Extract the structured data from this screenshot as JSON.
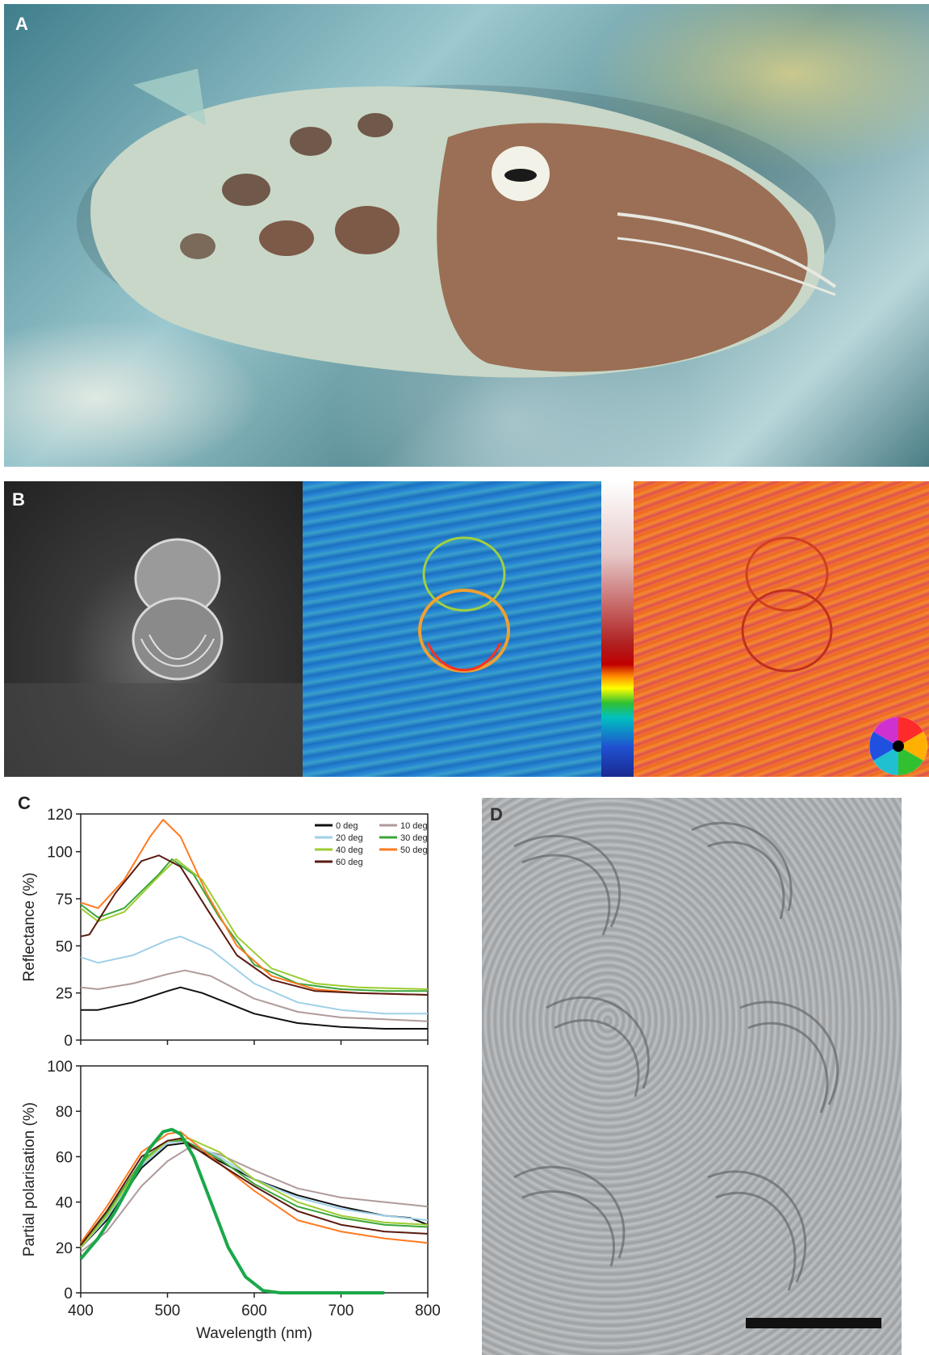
{
  "panels": {
    "a": "A",
    "b": "B",
    "c": "C",
    "d": "D"
  },
  "chart_data": [
    {
      "type": "line",
      "ylabel": "Reflectance (%)",
      "xlim": [
        400,
        800
      ],
      "ylim": [
        0,
        120
      ],
      "yticks": [
        0,
        25,
        50,
        75,
        100,
        120
      ],
      "grid": false,
      "legend_position": "top-right",
      "series": [
        {
          "name": "0 deg",
          "color": "#111111",
          "points": [
            [
              400,
              16
            ],
            [
              420,
              16
            ],
            [
              460,
              20
            ],
            [
              500,
              26
            ],
            [
              515,
              28
            ],
            [
              540,
              25
            ],
            [
              600,
              14
            ],
            [
              650,
              9
            ],
            [
              700,
              7
            ],
            [
              750,
              6
            ],
            [
              800,
              6
            ]
          ]
        },
        {
          "name": "10 deg",
          "color": "#b09a9a",
          "points": [
            [
              400,
              28
            ],
            [
              420,
              27
            ],
            [
              460,
              30
            ],
            [
              500,
              35
            ],
            [
              520,
              37
            ],
            [
              550,
              34
            ],
            [
              600,
              22
            ],
            [
              650,
              15
            ],
            [
              700,
              12
            ],
            [
              750,
              11
            ],
            [
              800,
              10
            ]
          ]
        },
        {
          "name": "20 deg",
          "color": "#9fd0e8",
          "points": [
            [
              400,
              44
            ],
            [
              420,
              41
            ],
            [
              460,
              45
            ],
            [
              500,
              53
            ],
            [
              515,
              55
            ],
            [
              550,
              48
            ],
            [
              600,
              30
            ],
            [
              650,
              20
            ],
            [
              700,
              16
            ],
            [
              750,
              14
            ],
            [
              800,
              14
            ]
          ]
        },
        {
          "name": "30 deg",
          "color": "#3aa63a",
          "points": [
            [
              400,
              72
            ],
            [
              420,
              65
            ],
            [
              450,
              70
            ],
            [
              490,
              88
            ],
            [
              505,
              96
            ],
            [
              530,
              88
            ],
            [
              560,
              65
            ],
            [
              600,
              40
            ],
            [
              650,
              30
            ],
            [
              700,
              27
            ],
            [
              750,
              26
            ],
            [
              800,
              26
            ]
          ]
        },
        {
          "name": "40 deg",
          "color": "#9ccc30",
          "points": [
            [
              400,
              70
            ],
            [
              420,
              63
            ],
            [
              450,
              68
            ],
            [
              490,
              87
            ],
            [
              510,
              96
            ],
            [
              540,
              85
            ],
            [
              580,
              55
            ],
            [
              620,
              38
            ],
            [
              670,
              30
            ],
            [
              720,
              28
            ],
            [
              800,
              27
            ]
          ]
        },
        {
          "name": "50 deg",
          "color": "#ff7a20",
          "points": [
            [
              400,
              73
            ],
            [
              420,
              70
            ],
            [
              450,
              85
            ],
            [
              480,
              108
            ],
            [
              495,
              117
            ],
            [
              515,
              108
            ],
            [
              545,
              78
            ],
            [
              580,
              50
            ],
            [
              620,
              34
            ],
            [
              670,
              27
            ],
            [
              720,
              25
            ],
            [
              800,
              24
            ]
          ]
        },
        {
          "name": "60 deg",
          "color": "#5a1a10",
          "points": [
            [
              400,
              55
            ],
            [
              410,
              56
            ],
            [
              440,
              78
            ],
            [
              470,
              95
            ],
            [
              490,
              98
            ],
            [
              515,
              92
            ],
            [
              545,
              70
            ],
            [
              580,
              45
            ],
            [
              620,
              32
            ],
            [
              670,
              26
            ],
            [
              720,
              25
            ],
            [
              800,
              24
            ]
          ]
        }
      ]
    },
    {
      "type": "line",
      "xlabel": "Wavelength (nm)",
      "ylabel": "Partial polarisation (%)",
      "xlim": [
        400,
        800
      ],
      "ylim": [
        0,
        100
      ],
      "xticks": [
        400,
        500,
        600,
        700,
        800
      ],
      "yticks": [
        0,
        20,
        40,
        60,
        80,
        100
      ],
      "grid": false,
      "series": [
        {
          "name": "0 deg",
          "color": "#111111",
          "points": [
            [
              400,
              20
            ],
            [
              430,
              32
            ],
            [
              470,
              55
            ],
            [
              500,
              65
            ],
            [
              520,
              66
            ],
            [
              550,
              60
            ],
            [
              600,
              50
            ],
            [
              650,
              43
            ],
            [
              700,
              38
            ],
            [
              750,
              34
            ],
            [
              780,
              33
            ],
            [
              800,
              30
            ]
          ]
        },
        {
          "name": "10 deg",
          "color": "#b09a9a",
          "points": [
            [
              400,
              18
            ],
            [
              430,
              27
            ],
            [
              470,
              47
            ],
            [
              500,
              58
            ],
            [
              525,
              64
            ],
            [
              560,
              61
            ],
            [
              600,
              54
            ],
            [
              650,
              46
            ],
            [
              700,
              42
            ],
            [
              750,
              40
            ],
            [
              800,
              38
            ]
          ]
        },
        {
          "name": "20 deg",
          "color": "#9fd0e8",
          "points": [
            [
              400,
              20
            ],
            [
              430,
              33
            ],
            [
              470,
              56
            ],
            [
              500,
              66
            ],
            [
              520,
              67
            ],
            [
              560,
              60
            ],
            [
              600,
              50
            ],
            [
              650,
              42
            ],
            [
              700,
              37
            ],
            [
              750,
              34
            ],
            [
              800,
              32
            ]
          ]
        },
        {
          "name": "30 deg",
          "color": "#3aa63a",
          "points": [
            [
              400,
              21
            ],
            [
              430,
              35
            ],
            [
              470,
              58
            ],
            [
              500,
              67
            ],
            [
              520,
              67
            ],
            [
              560,
              59
            ],
            [
              600,
              48
            ],
            [
              650,
              38
            ],
            [
              700,
              33
            ],
            [
              750,
              30
            ],
            [
              800,
              29
            ]
          ]
        },
        {
          "name": "40 deg",
          "color": "#9ccc30",
          "points": [
            [
              400,
              20
            ],
            [
              430,
              34
            ],
            [
              470,
              57
            ],
            [
              500,
              67
            ],
            [
              525,
              68
            ],
            [
              560,
              62
            ],
            [
              600,
              50
            ],
            [
              650,
              40
            ],
            [
              700,
              34
            ],
            [
              750,
              31
            ],
            [
              800,
              30
            ]
          ]
        },
        {
          "name": "50 deg",
          "color": "#ff7a20",
          "points": [
            [
              400,
              22
            ],
            [
              430,
              38
            ],
            [
              470,
              62
            ],
            [
              500,
              70
            ],
            [
              515,
              71
            ],
            [
              550,
              60
            ],
            [
              600,
              45
            ],
            [
              650,
              32
            ],
            [
              700,
              27
            ],
            [
              750,
              24
            ],
            [
              800,
              22
            ]
          ]
        },
        {
          "name": "60 deg",
          "color": "#5a1a10",
          "points": [
            [
              400,
              21
            ],
            [
              430,
              36
            ],
            [
              470,
              60
            ],
            [
              500,
              67
            ],
            [
              515,
              68
            ],
            [
              555,
              58
            ],
            [
              600,
              47
            ],
            [
              650,
              36
            ],
            [
              700,
              30
            ],
            [
              750,
              27
            ],
            [
              800,
              26
            ]
          ]
        },
        {
          "name": "",
          "color": "#1aa84a",
          "width": 4,
          "points": [
            [
              400,
              15
            ],
            [
              420,
              24
            ],
            [
              440,
              36
            ],
            [
              460,
              50
            ],
            [
              480,
              64
            ],
            [
              495,
              71
            ],
            [
              505,
              72
            ],
            [
              515,
              70
            ],
            [
              530,
              60
            ],
            [
              550,
              40
            ],
            [
              570,
              20
            ],
            [
              590,
              7
            ],
            [
              610,
              1
            ],
            [
              630,
              0
            ],
            [
              700,
              0
            ],
            [
              750,
              0
            ]
          ]
        }
      ]
    }
  ]
}
